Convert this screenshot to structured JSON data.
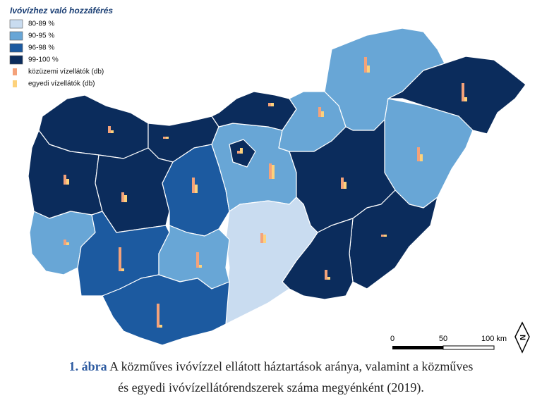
{
  "legend": {
    "title": "Ivóvízhez való hozzáférés",
    "classes": [
      {
        "label": "80-89 %",
        "color": "#c9dcf0"
      },
      {
        "label": "90-95 %",
        "color": "#68a6d6"
      },
      {
        "label": "96-98 %",
        "color": "#1c5aa0"
      },
      {
        "label": "99-100 %",
        "color": "#0b2c5c"
      }
    ],
    "symbols": [
      {
        "label": "közüzemi vízellátók (db)",
        "color": "#f4a27a"
      },
      {
        "label": "egyedi vízellátók (db)",
        "color": "#fdd27c"
      }
    ]
  },
  "regions": [
    {
      "class": 3,
      "public_systems": 10,
      "individual_systems": 4
    },
    {
      "class": 3,
      "public_systems": 3,
      "individual_systems": 3
    },
    {
      "class": 3,
      "public_systems": 14,
      "individual_systems": 8
    },
    {
      "class": 3,
      "public_systems": 14,
      "individual_systems": 10
    },
    {
      "class": 2,
      "public_systems": 22,
      "individual_systems": 12
    },
    {
      "class": 1,
      "public_systems": 22,
      "individual_systems": 20
    },
    {
      "class": 3,
      "public_systems": 4,
      "individual_systems": 8
    },
    {
      "class": 3,
      "public_systems": 5,
      "individual_systems": 5
    },
    {
      "class": 1,
      "public_systems": 14,
      "individual_systems": 8
    },
    {
      "class": 1,
      "public_systems": 22,
      "individual_systems": 10
    },
    {
      "class": 3,
      "public_systems": 26,
      "individual_systems": 6
    },
    {
      "class": 1,
      "public_systems": 20,
      "individual_systems": 10
    },
    {
      "class": 3,
      "public_systems": 16,
      "individual_systems": 10
    },
    {
      "class": 3,
      "public_systems": 3,
      "individual_systems": 3
    },
    {
      "class": 3,
      "public_systems": 14,
      "individual_systems": 4
    },
    {
      "class": 0,
      "public_systems": 14,
      "individual_systems": 12
    },
    {
      "class": 1,
      "public_systems": 8,
      "individual_systems": 4
    },
    {
      "class": 2,
      "public_systems": 34,
      "individual_systems": 4
    },
    {
      "class": 1,
      "public_systems": 22,
      "individual_systems": 4
    },
    {
      "class": 2,
      "public_systems": 34,
      "individual_systems": 4
    }
  ],
  "scale": {
    "labels": [
      "0",
      "50",
      "100 km"
    ],
    "north": "N"
  },
  "caption": {
    "label": "1. ábra",
    "line1": "A közműves ivóvízzel ellátott háztartások aránya, valamint a közműves",
    "line2": "és egyedi ivóvízellátórendszerek száma megyénként (2019)."
  }
}
